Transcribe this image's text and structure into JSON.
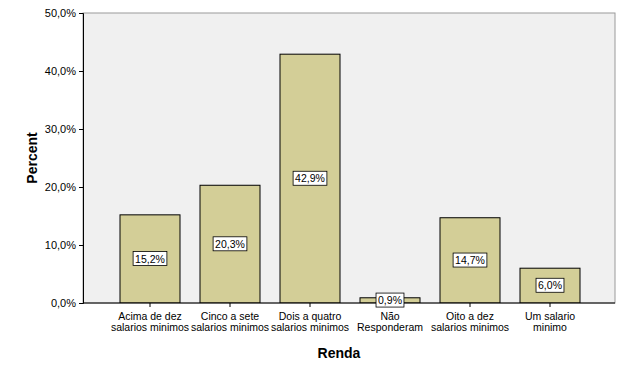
{
  "chart_data": {
    "type": "bar",
    "x_label": "Renda",
    "y_label": "Percent",
    "categories": [
      "Acima de dez salarios minimos",
      "Cinco a sete salarios minimos",
      "Dois a quatro salarios minimos",
      "Não Responderam",
      "Oito a dez salarios minimos",
      "Um salario minimo"
    ],
    "values": [
      15.2,
      20.3,
      42.9,
      0.9,
      14.7,
      6.0
    ],
    "value_labels": [
      "15,2%",
      "20,3%",
      "42,9%",
      "0,9%",
      "14,7%",
      "6,0%"
    ],
    "data_labels": true,
    "color": "#d3ce97",
    "ylim": [
      0,
      50
    ],
    "yticks": [
      {
        "value": 0,
        "label": "0,0%"
      },
      {
        "value": 10,
        "label": "10,0%"
      },
      {
        "value": 20,
        "label": "20,0%"
      },
      {
        "value": 30,
        "label": "30,0%"
      },
      {
        "value": 40,
        "label": "40,0%"
      },
      {
        "value": 50,
        "label": "50,0%"
      }
    ],
    "grid": false
  }
}
